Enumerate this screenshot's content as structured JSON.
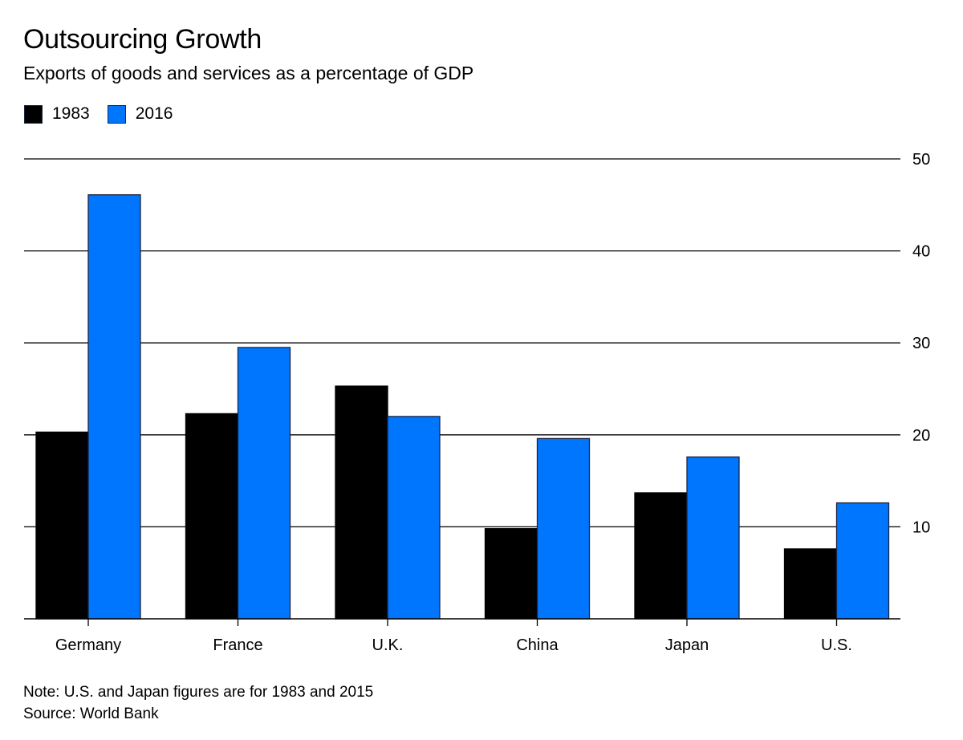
{
  "chart_data": {
    "type": "bar",
    "title": "Outsourcing Growth",
    "subtitle": "Exports of goods and services as a percentage of GDP",
    "xlabel": "",
    "ylabel": "",
    "categories": [
      "Germany",
      "France",
      "U.K.",
      "China",
      "Japan",
      "U.S."
    ],
    "series": [
      {
        "name": "1983",
        "color": "#000000",
        "values": [
          20.3,
          22.3,
          25.3,
          9.8,
          13.7,
          7.6
        ]
      },
      {
        "name": "2016",
        "color": "#0076FF",
        "values": [
          46.1,
          29.5,
          22.0,
          19.6,
          17.6,
          12.6
        ]
      }
    ],
    "ylim": [
      0,
      50
    ],
    "yticks": [
      10,
      20,
      30,
      40,
      50
    ],
    "y_axis_side": "right",
    "grid": true,
    "legend_placement": "top-left",
    "note": "Note: U.S. and Japan figures are for 1983 and 2015",
    "source": "Source: World Bank"
  }
}
